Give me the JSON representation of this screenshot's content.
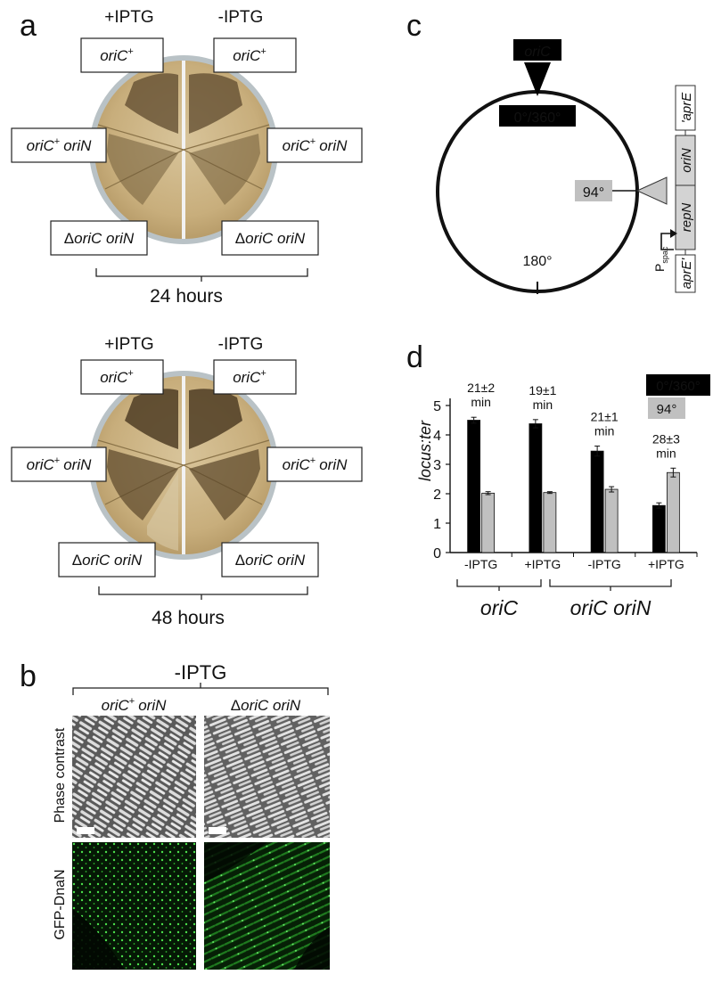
{
  "panels": {
    "a": {
      "letter": "a",
      "top": {
        "cond_left": "+IPTG",
        "cond_right": "-IPTG",
        "time": "24 hours"
      },
      "bottom": {
        "cond_left": "+IPTG",
        "cond_right": "-IPTG",
        "time": "48 hours"
      },
      "strains": {
        "oric_plus": "oriC",
        "oric_plus_sup": "+",
        "oric_orin_a": "oriC",
        "oric_orin_sup": "+",
        "oric_orin_b": "oriN",
        "delta": "Δ",
        "deleted": "oriC oriN"
      }
    },
    "b": {
      "letter": "b",
      "condition": "-IPTG",
      "col1_a": "oriC",
      "col1_sup": "+",
      "col1_b": "oriN",
      "col2_delta": "Δ",
      "col2": "oriC oriN",
      "row1": "Phase contrast",
      "row2": "GFP-DnaN"
    },
    "c": {
      "letter": "c",
      "origin": "oriC",
      "pos0": "0°/360°",
      "pos94": "94°",
      "pos180": "180°",
      "cassette": {
        "aprE_right": "'aprE",
        "oriN": "oriN",
        "repN": "repN",
        "aprE_left": "aprE'",
        "promoter": "P",
        "promoter_sub": "spac"
      }
    },
    "d": {
      "letter": "d",
      "legend_black": "0°/360°",
      "legend_grey": "94°",
      "ylabel": "locus:ter",
      "group1": "oriC",
      "group2": "oriC oriN",
      "min_word": "min"
    }
  },
  "chart_data": {
    "type": "bar",
    "categories": [
      "-IPTG",
      "+IPTG",
      "-IPTG",
      "+IPTG"
    ],
    "groups": [
      {
        "label": "oriC",
        "categories": [
          0,
          1
        ]
      },
      {
        "label": "oriC oriN",
        "categories": [
          2,
          3
        ]
      }
    ],
    "series": [
      {
        "name": "0°/360°",
        "color": "#000000",
        "values": [
          4.5,
          4.38,
          3.45,
          1.6
        ],
        "errors": [
          0.1,
          0.14,
          0.17,
          0.09
        ]
      },
      {
        "name": "94°",
        "color": "#c0c0c0",
        "values": [
          2.02,
          2.04,
          2.15,
          2.72
        ],
        "errors": [
          0.05,
          0.03,
          0.09,
          0.15
        ]
      }
    ],
    "annotations": [
      "21±2",
      "19±1",
      "21±1",
      "28±3"
    ],
    "ylabel": "locus:ter",
    "ylim": [
      0,
      5
    ],
    "yticks": [
      0,
      1,
      2,
      3,
      4,
      5
    ],
    "legend": "top-right",
    "grid": false
  },
  "colors": {
    "plate_agar": "#c9b283",
    "plate_rim": "#b9c2c6",
    "bar_black": "#000000",
    "bar_grey": "#c0c0c0",
    "gfp": "#3bd43b"
  }
}
